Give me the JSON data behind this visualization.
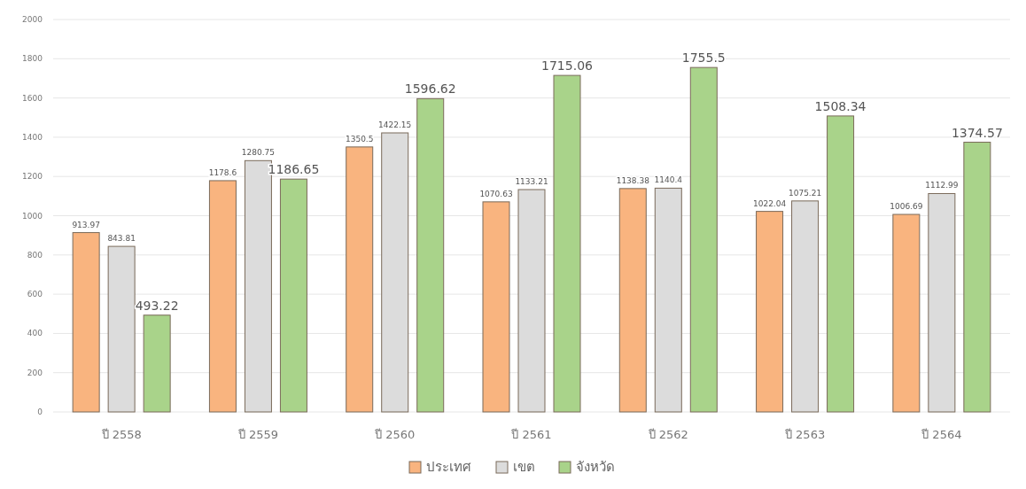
{
  "chart_data": {
    "type": "bar",
    "categories": [
      "ปี 2558",
      "ปี 2559",
      "ปี 2560",
      "ปี 2561",
      "ปี 2562",
      "ปี 2563",
      "ปี 2564"
    ],
    "series": [
      {
        "name": "ประเทศ",
        "color": "#f9b47f",
        "values": [
          913.97,
          1178.6,
          1350.5,
          1070.63,
          1138.38,
          1022.04,
          1006.69
        ]
      },
      {
        "name": "เขต",
        "color": "#dcdcdc",
        "values": [
          843.81,
          1280.75,
          1422.15,
          1133.21,
          1140.4,
          1075.21,
          1112.99
        ]
      },
      {
        "name": "จังหวัด",
        "color": "#a9d38a",
        "values": [
          493.22,
          1186.65,
          1596.62,
          1715.06,
          1755.5,
          1508.34,
          1374.57
        ]
      }
    ],
    "ylim": [
      0,
      2000
    ],
    "yticks": [
      0,
      200,
      400,
      600,
      800,
      1000,
      1200,
      1400,
      1600,
      1800,
      2000
    ],
    "grid": "y",
    "legend": "bottom",
    "data_labels": true
  }
}
